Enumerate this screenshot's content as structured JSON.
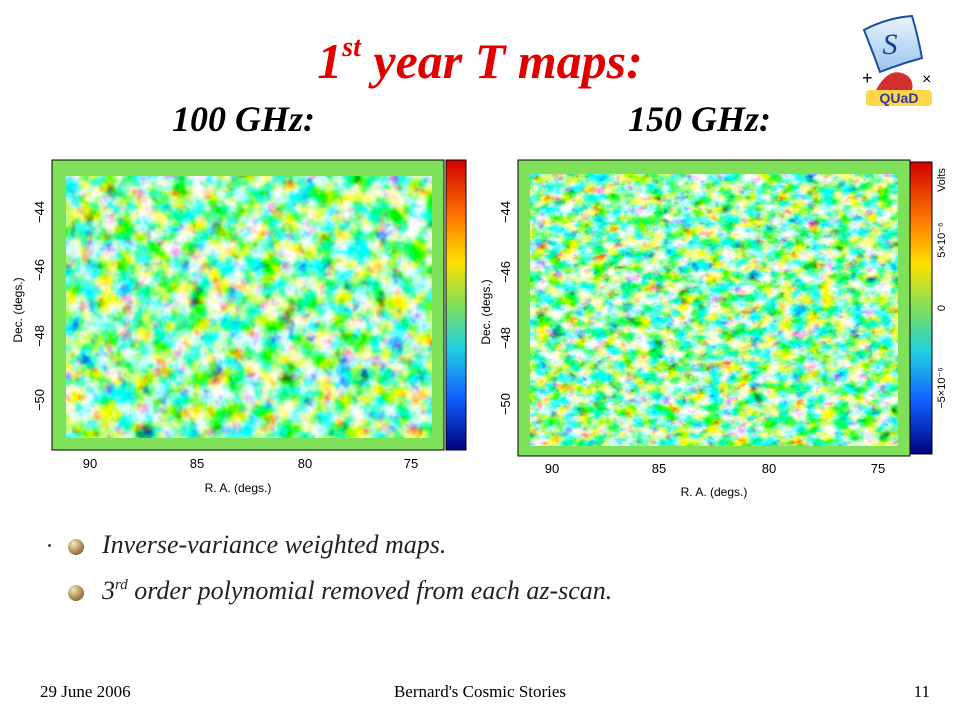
{
  "slide": {
    "title": "1",
    "title_sup": "st",
    "title_rest": " year T maps:",
    "left_label": "100 GHz:",
    "right_label": "150 GHz:"
  },
  "logo": {
    "letter": "S",
    "plus": "+",
    "cross": "×",
    "name": "QUaD"
  },
  "maps": {
    "left": {
      "x_ticks": [
        "90",
        "85",
        "80",
        "75"
      ],
      "y_ticks": [
        "−44",
        "−46",
        "−48",
        "−50"
      ],
      "xlabel": "R. A. (degs.)",
      "ylabel": "Dec. (degs.)"
    },
    "right": {
      "x_ticks": [
        "90",
        "85",
        "80",
        "75"
      ],
      "y_ticks": [
        "−44",
        "−46",
        "−48",
        "−50"
      ],
      "xlabel": "R. A. (degs.)",
      "ylabel": "Dec. (degs.)",
      "colorbar_label": "Volts",
      "colorbar_ticks": [
        "5×10⁻⁶",
        "0",
        "−5×10⁻⁶"
      ]
    }
  },
  "bullets": [
    {
      "text": "Inverse-variance weighted maps.",
      "sup": "",
      "rest": ""
    },
    {
      "text": "3",
      "sup": "rd",
      "rest": " order polynomial removed from each az-scan."
    }
  ],
  "footer": {
    "date": "29 June 2006",
    "center": "Bernard's Cosmic Stories",
    "page": "11"
  },
  "colors": {
    "title": "#e00000",
    "map_background": "#7fe05a"
  }
}
